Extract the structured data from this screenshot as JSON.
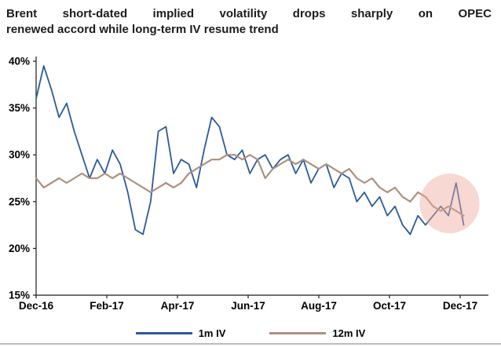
{
  "header": {
    "title_line1": "Brent short-dated implied volatility drops sharply on OPEC",
    "title_line2": "renewed accord while long-term IV resume trend"
  },
  "chart_data": {
    "type": "line",
    "title": "Brent short-dated implied volatility drops sharply on OPEC renewed accord while long-term IV resume trend",
    "xlabel": "",
    "ylabel": "",
    "grid": false,
    "legend_position": "bottom",
    "ylim": [
      15,
      40
    ],
    "y_ticks": [
      15,
      20,
      25,
      30,
      35,
      40
    ],
    "y_tick_suffix": "%",
    "x_range_months": [
      0,
      12.8
    ],
    "x_ticks": [
      {
        "month": 0,
        "label": "Dec-16"
      },
      {
        "month": 2,
        "label": "Feb-17"
      },
      {
        "month": 4,
        "label": "Apr-17"
      },
      {
        "month": 6,
        "label": "Jun-17"
      },
      {
        "month": 8,
        "label": "Aug-17"
      },
      {
        "month": 10,
        "label": "Oct-17"
      },
      {
        "month": 12,
        "label": "Dec-17"
      }
    ],
    "series": [
      {
        "name": "1m IV",
        "color": "#2b5a9c",
        "x_start_month": 0,
        "x_end_month": 12.1,
        "values": [
          36,
          39.5,
          37,
          34,
          35.5,
          32.5,
          30,
          27.5,
          29.5,
          28,
          30.5,
          29,
          26,
          22,
          21.5,
          25,
          32.5,
          33,
          28,
          29.5,
          29,
          26.5,
          30.5,
          34,
          33,
          30,
          29.5,
          30.5,
          28,
          29.5,
          30,
          28.5,
          29.5,
          30,
          28,
          29.5,
          27,
          28.5,
          29,
          26.5,
          28,
          27.5,
          25,
          26,
          24.5,
          25.5,
          23.5,
          24.5,
          22.5,
          21.5,
          23.5,
          22.5,
          23.5,
          24.5,
          23.5,
          27,
          22.5
        ]
      },
      {
        "name": "12m IV",
        "color": "#ae907e",
        "x_start_month": 0,
        "x_end_month": 12.1,
        "values": [
          27.5,
          26.5,
          27,
          27.5,
          27,
          27.5,
          28,
          27.5,
          27.5,
          28,
          27.5,
          28,
          27.5,
          27,
          26.5,
          26,
          26.5,
          27,
          26.5,
          27,
          28,
          28.5,
          29,
          29.5,
          29.5,
          30,
          30,
          29.5,
          30,
          29.5,
          27.5,
          28.5,
          29,
          29.5,
          29,
          29.5,
          29,
          28.5,
          29,
          28.5,
          28,
          28.5,
          27.5,
          27,
          27.5,
          26.5,
          26,
          26.5,
          25.5,
          25,
          26,
          25.5,
          24.5,
          24,
          24.5,
          24,
          23.5
        ]
      }
    ],
    "highlight_circle": {
      "center_month": 11.7,
      "center_value": 24.8,
      "radius_px": 38,
      "fill": "#eda89b",
      "fill_opacity": 0.45
    }
  },
  "colors": {
    "axis": "#1a1a1a",
    "divider": "#bdbdbd",
    "background": "#ffffff"
  }
}
